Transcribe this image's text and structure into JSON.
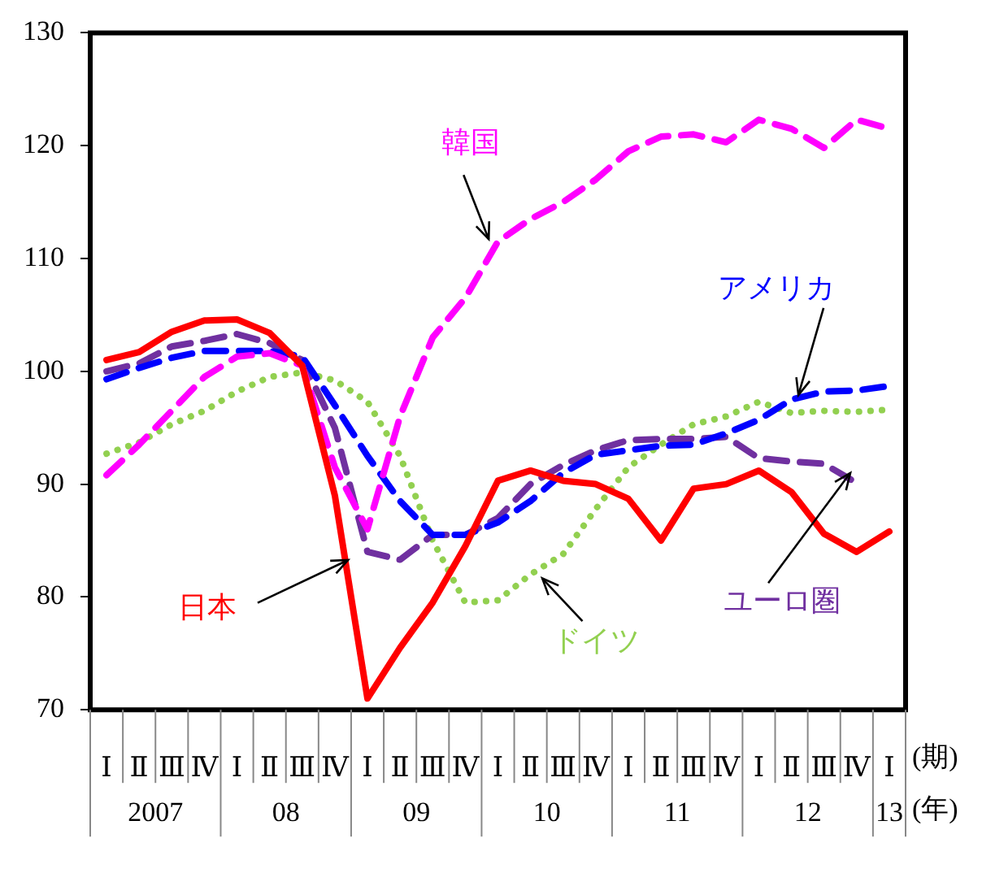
{
  "chart_data": {
    "type": "line",
    "xlabel": "(期)",
    "categories": [
      "Ⅰ",
      "Ⅱ",
      "Ⅲ",
      "Ⅳ",
      "Ⅰ",
      "Ⅱ",
      "Ⅲ",
      "Ⅳ",
      "Ⅰ",
      "Ⅱ",
      "Ⅲ",
      "Ⅳ",
      "Ⅰ",
      "Ⅱ",
      "Ⅲ",
      "Ⅳ",
      "Ⅰ",
      "Ⅱ",
      "Ⅲ",
      "Ⅳ",
      "Ⅰ",
      "Ⅱ",
      "Ⅲ",
      "Ⅳ",
      "Ⅰ"
    ],
    "series": [
      {
        "name": "日本",
        "color": "#ff0000",
        "line_style": "solid",
        "values": [
          101.0,
          101.7,
          103.5,
          104.5,
          104.6,
          103.4,
          100.5,
          89.0,
          71.0,
          75.5,
          79.5,
          84.5,
          90.3,
          91.2,
          90.3,
          90.0,
          88.7,
          85.0,
          89.6,
          90.0,
          91.2,
          89.3,
          85.6,
          84.0,
          85.8
        ]
      },
      {
        "name": "韓国",
        "color": "#ff00ff",
        "line_style": "dashed",
        "values": [
          90.8,
          93.5,
          96.5,
          99.5,
          101.3,
          101.6,
          100.5,
          91.5,
          86.0,
          96.0,
          103.0,
          106.5,
          111.5,
          113.5,
          115.0,
          117.0,
          119.5,
          120.8,
          121.0,
          120.3,
          122.3,
          121.5,
          119.8,
          122.3,
          121.5
        ]
      },
      {
        "name": "アメリカ",
        "color": "#0000ff",
        "line_style": "dashed",
        "values": [
          99.3,
          100.3,
          101.2,
          101.8,
          101.8,
          101.8,
          101.3,
          97.0,
          92.5,
          88.5,
          85.5,
          85.5,
          86.6,
          88.5,
          91.0,
          92.6,
          93.0,
          93.4,
          93.5,
          94.5,
          95.7,
          97.5,
          98.2,
          98.3,
          98.7
        ]
      },
      {
        "name": "ユーロ圏",
        "color": "#7030a0",
        "line_style": "dashed",
        "values": [
          100.0,
          100.7,
          102.2,
          102.7,
          103.3,
          102.5,
          101.0,
          95.0,
          84.0,
          83.3,
          85.5,
          85.5,
          87.0,
          90.0,
          91.7,
          93.0,
          93.9,
          94.0,
          94.0,
          94.2,
          92.3,
          92.0,
          91.8,
          90.1,
          null
        ]
      },
      {
        "name": "ドイツ",
        "color": "#92d050",
        "line_style": "dotted",
        "values": [
          92.7,
          93.7,
          95.3,
          96.5,
          98.2,
          99.5,
          99.9,
          99.2,
          97.3,
          92.5,
          85.0,
          79.5,
          79.7,
          82.0,
          83.8,
          87.8,
          91.5,
          93.5,
          95.3,
          96.0,
          97.3,
          96.3,
          96.5,
          96.4,
          96.6
        ]
      }
    ],
    "ylim": [
      70,
      130
    ],
    "yticks": [
      70,
      80,
      90,
      100,
      110,
      120,
      130
    ],
    "annotations": [
      "(年)",
      "2007",
      "08",
      "09",
      "10",
      "11",
      "12",
      "13"
    ]
  }
}
